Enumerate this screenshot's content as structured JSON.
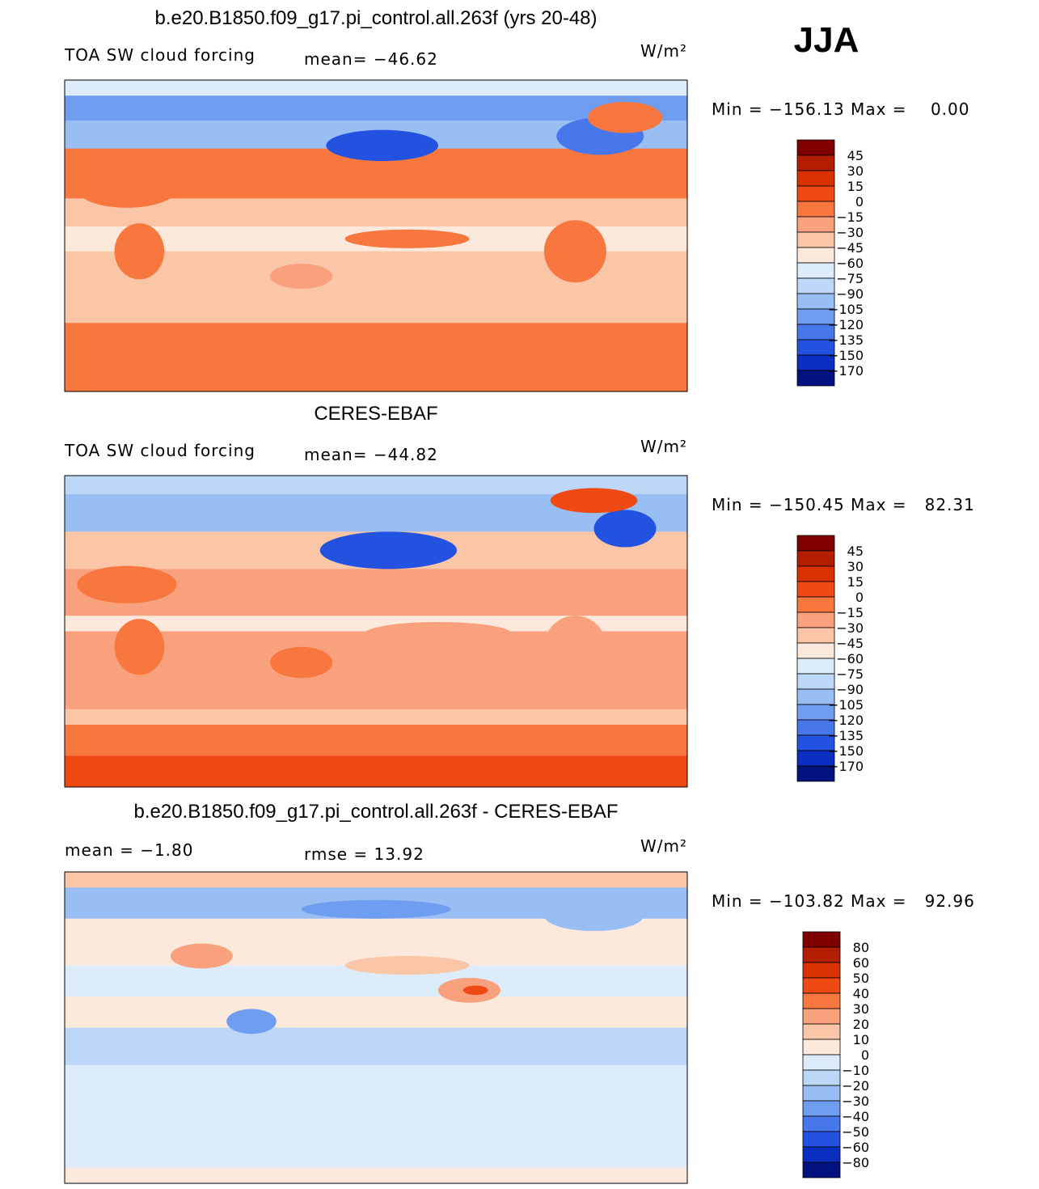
{
  "label": "JJA",
  "panels": [
    {
      "title": "b.e20.B1850.f09_g17.pi_control.all.263f (yrs 20-48)",
      "left": "TOA SW cloud forcing",
      "middle": "mean= −46.62",
      "units": "W/m²",
      "min_max": "Min = −156.13 Max =    0.00",
      "colorbar": {
        "labels": [
          "45",
          "30",
          "15",
          "0",
          "−15",
          "−30",
          "−45",
          "−60",
          "−75",
          "−90",
          "−105",
          "−120",
          "−135",
          "−150",
          "−170"
        ],
        "colors": [
          "#800000",
          "#b31e00",
          "#d93200",
          "#f04a14",
          "#f7773f",
          "#f9a07c",
          "#fbc5a8",
          "#fde8dc",
          "#dcecfb",
          "#bcd7f8",
          "#98bef4",
          "#6f9df0",
          "#4876eb",
          "#2452e0",
          "#0a2fc0",
          "#00127f"
        ]
      }
    },
    {
      "title": "CERES-EBAF",
      "left": "TOA SW cloud forcing",
      "middle": "mean= −44.82",
      "units": "W/m²",
      "min_max": "Min = −150.45 Max =   82.31",
      "colorbar": {
        "labels": [
          "45",
          "30",
          "15",
          "0",
          "−15",
          "−30",
          "−45",
          "−60",
          "−75",
          "−90",
          "−105",
          "−120",
          "−135",
          "−150",
          "−170"
        ],
        "colors": [
          "#800000",
          "#b31e00",
          "#d93200",
          "#f04a14",
          "#f7773f",
          "#f9a07c",
          "#fbc5a8",
          "#fde8dc",
          "#dcecfb",
          "#bcd7f8",
          "#98bef4",
          "#6f9df0",
          "#4876eb",
          "#2452e0",
          "#0a2fc0",
          "#00127f"
        ]
      }
    },
    {
      "title": "b.e20.B1850.f09_g17.pi_control.all.263f - CERES-EBAF",
      "left": "mean =   −1.80",
      "middle": "rmse =   13.92",
      "units": "W/m²",
      "min_max": "Min = −103.82 Max =   92.96",
      "colorbar": {
        "labels": [
          "80",
          "60",
          "50",
          "40",
          "30",
          "20",
          "10",
          "0",
          "−10",
          "−20",
          "−30",
          "−40",
          "−50",
          "−60",
          "−80"
        ],
        "colors": [
          "#800000",
          "#b31e00",
          "#d93200",
          "#f04a14",
          "#f7773f",
          "#f9a07c",
          "#fbc5a8",
          "#fde8dc",
          "#dcecfb",
          "#bcd7f8",
          "#98bef4",
          "#6f9df0",
          "#4876eb",
          "#2452e0",
          "#0a2fc0",
          "#00127f"
        ]
      }
    }
  ]
}
